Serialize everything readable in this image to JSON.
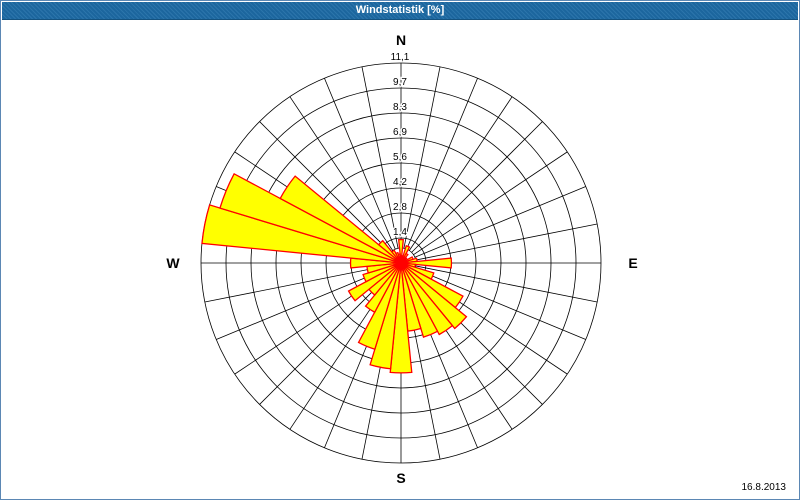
{
  "window": {
    "title": "Windstatistik [%]"
  },
  "footer": {
    "date": "16.8.2013"
  },
  "chart_data": {
    "type": "windrose",
    "title": "Windstatistik [%]",
    "unit": "%",
    "sectors": 32,
    "sector_width_deg": 11.25,
    "rings": 8,
    "ring_step_pct": 1.3875,
    "max_value_pct": 11.1,
    "ring_labels": [
      "1,4",
      "2,8",
      "4,2",
      "5,6",
      "6,9",
      "8,3",
      "9,7",
      "11,1"
    ],
    "compass_labels": {
      "n": "N",
      "e": "E",
      "s": "S",
      "w": "W"
    },
    "directions_deg": [
      0,
      11.25,
      22.5,
      33.75,
      45,
      56.25,
      67.5,
      78.75,
      90,
      101.25,
      112.5,
      123.75,
      135,
      146.25,
      157.5,
      168.75,
      180,
      191.25,
      202.5,
      213.75,
      225,
      236.25,
      247.5,
      258.75,
      270,
      281.25,
      292.5,
      303.75,
      315,
      326.25,
      337.5,
      348.75
    ],
    "values_pct": [
      1.3,
      0.4,
      1.0,
      0.6,
      0.4,
      0.3,
      0.7,
      0.9,
      2.8,
      0.8,
      1.9,
      3.9,
      4.7,
      4.5,
      4.3,
      3.8,
      6.1,
      5.9,
      5.0,
      3.1,
      2.3,
      3.3,
      2.2,
      1.9,
      2.8,
      11.1,
      10.5,
      7.6,
      1.6,
      0.8,
      0.6,
      0.5
    ],
    "legend_position": "none",
    "grid": true,
    "colors": {
      "sector_fill": "#ffff00",
      "sector_border": "#ff0000",
      "grid_line": "#000000",
      "title_bg": "#1e6ca6",
      "title_text": "#ffffff",
      "label_text": "#000000"
    }
  }
}
